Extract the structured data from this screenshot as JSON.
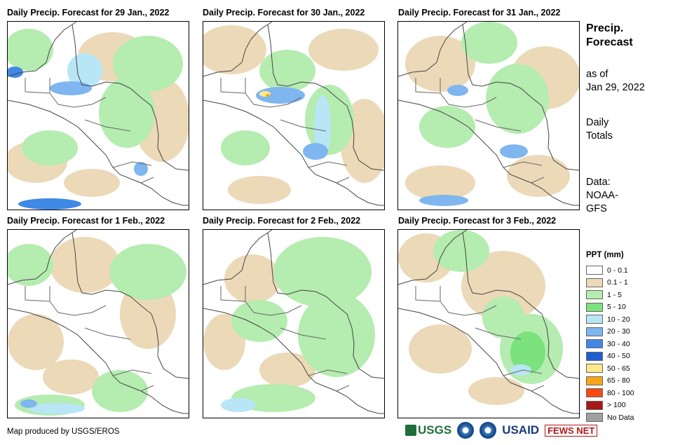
{
  "panels": [
    {
      "title": "Daily Precip. Forecast for 29 Jan., 2022"
    },
    {
      "title": "Daily Precip. Forecast for 30 Jan., 2022"
    },
    {
      "title": "Daily Precip. Forecast for 31 Jan., 2022"
    },
    {
      "title": "Daily Precip. Forecast for 1 Feb., 2022"
    },
    {
      "title": "Daily Precip. Forecast for 2 Feb., 2022"
    },
    {
      "title": "Daily Precip. Forecast for 3 Feb., 2022"
    }
  ],
  "side": {
    "title_line1": "Precip.",
    "title_line2": "Forecast",
    "asof_line1": "as of",
    "asof_line2": "Jan 29, 2022",
    "totals_line1": "Daily",
    "totals_line2": "Totals",
    "data_line1": "Data:",
    "data_line2": "NOAA-",
    "data_line3": "GFS"
  },
  "legend": {
    "title": "PPT (mm)",
    "items": [
      {
        "label": "0 - 0.1",
        "color": "#ffffff"
      },
      {
        "label": "0.1 - 1",
        "color": "#ecd9b8"
      },
      {
        "label": "1 - 5",
        "color": "#b5ecb0"
      },
      {
        "label": "5 - 10",
        "color": "#7be27e"
      },
      {
        "label": "10 - 20",
        "color": "#b9e6f6"
      },
      {
        "label": "20 - 30",
        "color": "#7fb6ef"
      },
      {
        "label": "30 - 40",
        "color": "#3f88e6"
      },
      {
        "label": "40 - 50",
        "color": "#1f5fd2"
      },
      {
        "label": "50 - 65",
        "color": "#fde98a"
      },
      {
        "label": "65 - 80",
        "color": "#f9a51a"
      },
      {
        "label": "80 - 100",
        "color": "#fb4a10"
      },
      {
        "label": "> 100",
        "color": "#a81818"
      },
      {
        "label": "No Data",
        "color": "#a0a0a0"
      }
    ]
  },
  "credit": "Map produced by USGS/EROS",
  "logos": {
    "usgs": "USGS",
    "usaid": "USAID",
    "fews": "FEWS NET"
  },
  "colors": {
    "tan": "#ecd9b8",
    "light_green": "#b5ecb0",
    "green": "#7be27e",
    "light_blue": "#b9e6f6",
    "blue": "#7fb6ef",
    "mid_blue": "#3f88e6",
    "dark_blue": "#1f5fd2",
    "yellow": "#fde98a",
    "orange": "#f9a51a"
  }
}
